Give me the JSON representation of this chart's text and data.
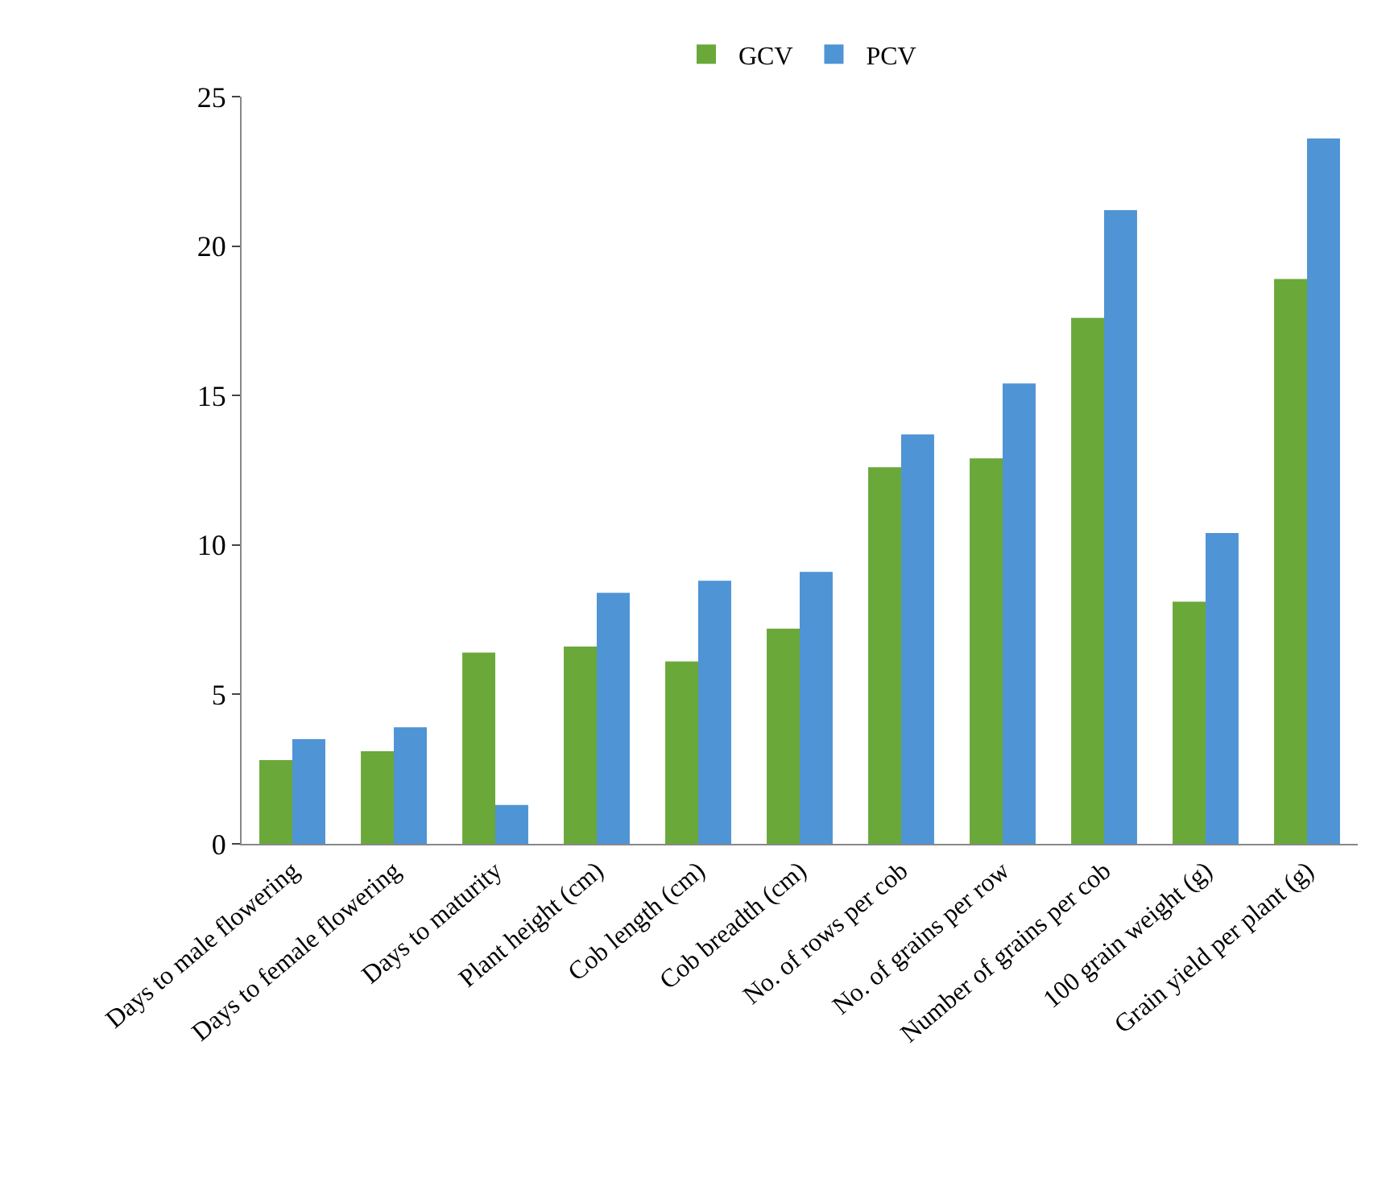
{
  "chart_data": {
    "type": "bar",
    "categories": [
      "Days to male flowering",
      "Days to female flowering",
      "Days to maturity",
      "Plant height (cm)",
      "Cob length (cm)",
      "Cob breadth (cm)",
      "No. of rows per cob",
      "No. of grains per row",
      "Number of grains per cob",
      "100 grain weight (g)",
      "Grain yield per plant (g)"
    ],
    "series": [
      {
        "name": "GCV",
        "color": "#6aa83a",
        "values": [
          2.8,
          3.1,
          6.4,
          6.6,
          6.1,
          7.2,
          12.6,
          12.9,
          17.6,
          8.1,
          18.9
        ]
      },
      {
        "name": "PCV",
        "color": "#4f94d4",
        "values": [
          3.5,
          3.9,
          1.3,
          8.4,
          8.8,
          9.1,
          13.7,
          15.4,
          21.2,
          10.4,
          23.6
        ]
      }
    ],
    "ylim": [
      0,
      25
    ],
    "yticks": [
      0,
      5,
      10,
      15,
      20,
      25
    ],
    "grid": false,
    "legend": "top"
  }
}
